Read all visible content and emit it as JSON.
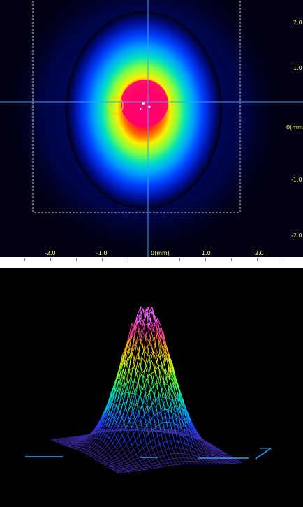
{
  "beam_profile_2d": {
    "y_axis_labels": [
      "2.0",
      "1.0",
      "0(mm)",
      "-1.0",
      "-2.0"
    ],
    "x_axis_labels": [
      "-2.0",
      "-1.0",
      "0(mm)",
      "1.0",
      "2.0"
    ],
    "colormap": [
      "#000033",
      "#0000aa",
      "#0040ff",
      "#00a0ff",
      "#00e0c0",
      "#40ff60",
      "#ffff00",
      "#ff8000",
      "#ff0040",
      "#ff00a0"
    ],
    "crosshair_color": "#3aa0ff",
    "roi_color": "#cccccc"
  },
  "beam_profile_3d": {
    "colormap": [
      "#3a2aa0",
      "#2040ff",
      "#00aaff",
      "#00e0b0",
      "#60ff40",
      "#e0ff00",
      "#ffb000",
      "#ff40a0",
      "#ff60ff"
    ],
    "base_color": "#2aa0ff"
  }
}
